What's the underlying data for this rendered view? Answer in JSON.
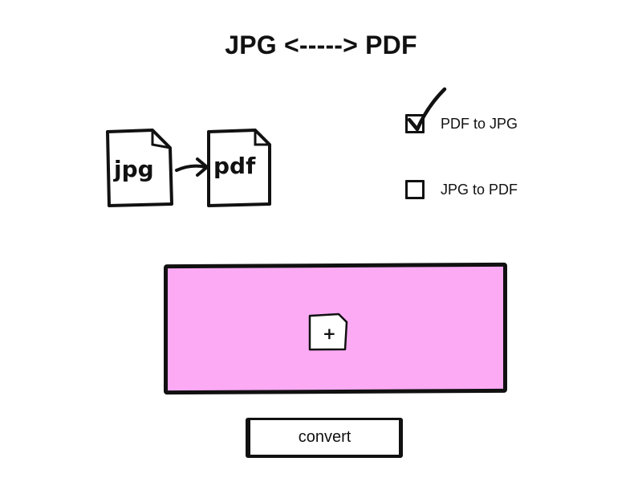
{
  "header": {
    "title": "JPG <-----> PDF"
  },
  "illustration": {
    "source_label": "jpg",
    "target_label": "pdf",
    "arrow_icon": "arrow-right-icon"
  },
  "options": [
    {
      "label": "PDF to JPG",
      "checked": true
    },
    {
      "label": "JPG to PDF",
      "checked": false
    }
  ],
  "dropzone": {
    "background": "#fdaaf5",
    "add_icon_label": "+"
  },
  "actions": {
    "convert_label": "convert"
  }
}
